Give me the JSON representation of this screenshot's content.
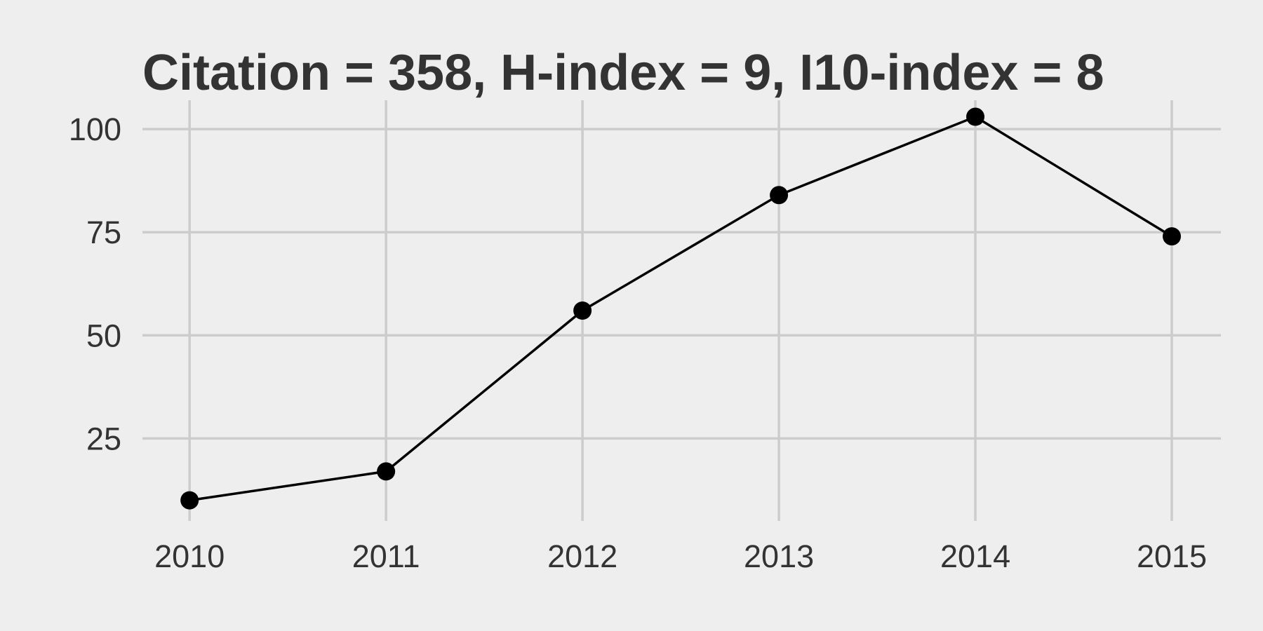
{
  "chart_data": {
    "type": "line",
    "title": "Citation = 358, H-index = 9, I10-index = 8",
    "xlabel": "",
    "ylabel": "",
    "x": [
      2010,
      2011,
      2012,
      2013,
      2014,
      2015
    ],
    "x_tick_labels": [
      "2010",
      "2011",
      "2012",
      "2013",
      "2014",
      "2015"
    ],
    "values": [
      10,
      17,
      56,
      84,
      103,
      74
    ],
    "y_ticks": [
      25,
      50,
      75,
      100
    ],
    "y_tick_labels": [
      "25",
      "50",
      "75",
      "100"
    ],
    "xlim": [
      2009.76,
      2015.25
    ],
    "ylim": [
      5,
      107
    ],
    "grid": true,
    "legend": "none",
    "colors": {
      "background": "#eeeeee",
      "grid": "#cccccc",
      "line": "#000000",
      "text": "#333333"
    }
  }
}
